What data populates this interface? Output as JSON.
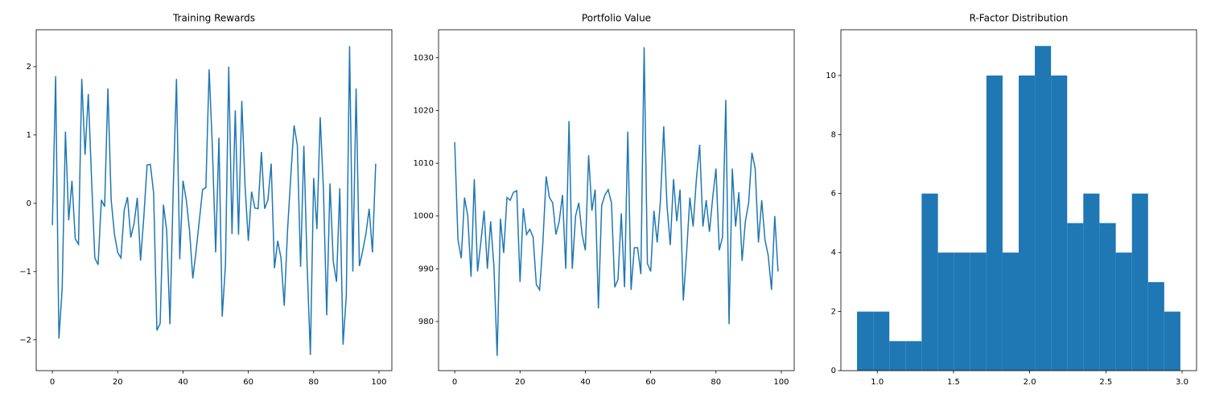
{
  "chart_data": [
    {
      "type": "line",
      "title": "Training Rewards",
      "color": "#1f77b4",
      "x": [
        0,
        1,
        2,
        3,
        4,
        5,
        6,
        7,
        8,
        9,
        10,
        11,
        12,
        13,
        14,
        15,
        16,
        17,
        18,
        19,
        20,
        21,
        22,
        23,
        24,
        25,
        26,
        27,
        28,
        29,
        30,
        31,
        32,
        33,
        34,
        35,
        36,
        37,
        38,
        39,
        40,
        41,
        42,
        43,
        44,
        45,
        46,
        47,
        48,
        49,
        50,
        51,
        52,
        53,
        54,
        55,
        56,
        57,
        58,
        59,
        60,
        61,
        62,
        63,
        64,
        65,
        66,
        67,
        68,
        69,
        70,
        71,
        72,
        73,
        74,
        75,
        76,
        77,
        78,
        79,
        80,
        81,
        82,
        83,
        84,
        85,
        86,
        87,
        88,
        89,
        90,
        91,
        92,
        93,
        94,
        95,
        96,
        97,
        98,
        99
      ],
      "values": [
        -0.32,
        1.86,
        -1.98,
        -1.25,
        1.05,
        -0.25,
        0.33,
        -0.52,
        -0.6,
        1.82,
        0.71,
        1.6,
        0.35,
        -0.8,
        -0.9,
        0.05,
        -0.05,
        1.68,
        0.05,
        -0.45,
        -0.72,
        -0.8,
        -0.1,
        0.09,
        -0.5,
        -0.3,
        0.08,
        -0.84,
        -0.2,
        0.56,
        0.57,
        0.15,
        -1.86,
        -1.76,
        -0.02,
        -0.4,
        -1.77,
        0.2,
        1.82,
        -0.82,
        0.33,
        0.05,
        -0.4,
        -1.1,
        -0.7,
        -0.25,
        0.2,
        0.23,
        1.96,
        0.8,
        -0.72,
        0.96,
        -1.66,
        -0.9,
        2.0,
        -0.45,
        1.36,
        -0.46,
        1.5,
        0.25,
        -0.55,
        0.17,
        -0.07,
        -0.08,
        0.75,
        -0.08,
        0.05,
        0.58,
        -0.95,
        -0.55,
        -0.8,
        -1.5,
        -0.4,
        0.4,
        1.14,
        0.85,
        -0.93,
        0.84,
        -0.9,
        -2.22,
        0.37,
        -0.38,
        1.26,
        0.2,
        -1.64,
        0.29,
        -0.85,
        -1.15,
        0.22,
        -2.07,
        -1.35,
        2.3,
        -1.0,
        1.68,
        -0.92,
        -0.7,
        -0.45,
        -0.08,
        -0.72,
        0.58
      ],
      "xlim": [
        -4.95,
        103.95
      ],
      "xticks": [
        0,
        20,
        40,
        60,
        80,
        100
      ],
      "ylim": [
        -2.45,
        2.54
      ],
      "yticks": [
        {
          "value": -2,
          "label": "−2"
        },
        {
          "value": -1,
          "label": "−1"
        },
        0,
        1,
        2
      ]
    },
    {
      "type": "line",
      "title": "Portfolio Value",
      "color": "#1f77b4",
      "x": [
        0,
        1,
        2,
        3,
        4,
        5,
        6,
        7,
        8,
        9,
        10,
        11,
        12,
        13,
        14,
        15,
        16,
        17,
        18,
        19,
        20,
        21,
        22,
        23,
        24,
        25,
        26,
        27,
        28,
        29,
        30,
        31,
        32,
        33,
        34,
        35,
        36,
        37,
        38,
        39,
        40,
        41,
        42,
        43,
        44,
        45,
        46,
        47,
        48,
        49,
        50,
        51,
        52,
        53,
        54,
        55,
        56,
        57,
        58,
        59,
        60,
        61,
        62,
        63,
        64,
        65,
        66,
        67,
        68,
        69,
        70,
        71,
        72,
        73,
        74,
        75,
        76,
        77,
        78,
        79,
        80,
        81,
        82,
        83,
        84,
        85,
        86,
        87,
        88,
        89,
        90,
        91,
        92,
        93,
        94,
        95,
        96,
        97,
        98,
        99
      ],
      "values": [
        1014,
        995.5,
        992,
        1003.5,
        1000,
        988.5,
        1007,
        989.5,
        995,
        1001,
        990,
        999,
        990.5,
        973.5,
        999.5,
        993,
        1003.5,
        1003,
        1004.5,
        1004.8,
        987.5,
        1001.5,
        996.5,
        997.5,
        996,
        987,
        986,
        995,
        1007.5,
        1003.5,
        1002.5,
        996.5,
        999,
        1004,
        990,
        1018,
        990,
        1000,
        1002.5,
        996.5,
        993.5,
        1011.5,
        1001,
        1005,
        982.5,
        1002,
        1004,
        1005,
        1002.5,
        986.5,
        988,
        1000.5,
        986.5,
        1016,
        986,
        994,
        994,
        989,
        1032,
        991,
        989.5,
        1001,
        995,
        1003,
        1017,
        1002,
        994.5,
        1007,
        999,
        1005,
        984,
        993,
        1003.5,
        998,
        1007,
        1013.5,
        998,
        1003,
        997,
        1003.5,
        1009,
        993.5,
        996,
        1022,
        979.5,
        1009,
        998,
        1004.5,
        991.5,
        999,
        1002.5,
        1012,
        1009,
        995,
        1003,
        995.5,
        992.5,
        986,
        1000,
        989.5
      ],
      "xlim": [
        -4.95,
        103.95
      ],
      "xticks": [
        0,
        20,
        40,
        60,
        80,
        100
      ],
      "ylim": [
        970.7,
        1035.3
      ],
      "yticks": [
        980,
        990,
        1000,
        1010,
        1020,
        1030
      ]
    },
    {
      "type": "histogram",
      "title": "R-Factor Distribution",
      "color": "#1f77b4",
      "bins": [
        0.867,
        0.973,
        1.079,
        1.185,
        1.291,
        1.398,
        1.504,
        1.61,
        1.716,
        1.822,
        1.928,
        2.034,
        2.14,
        2.246,
        2.352,
        2.458,
        2.565,
        2.671,
        2.777,
        2.883,
        2.989
      ],
      "counts": [
        2,
        2,
        1,
        1,
        6,
        4,
        4,
        4,
        10,
        4,
        10,
        11,
        10,
        5,
        6,
        5,
        4,
        6,
        3,
        2
      ],
      "xlim": [
        0.761,
        3.095
      ],
      "xticks": [
        {
          "value": 1.0,
          "label": "1.0"
        },
        1.5,
        {
          "value": 2.0,
          "label": "2.0"
        },
        2.5,
        {
          "value": 3.0,
          "label": "3.0"
        }
      ],
      "ylim": [
        0,
        11.55
      ],
      "yticks": [
        0,
        2,
        4,
        6,
        8,
        10
      ]
    }
  ]
}
